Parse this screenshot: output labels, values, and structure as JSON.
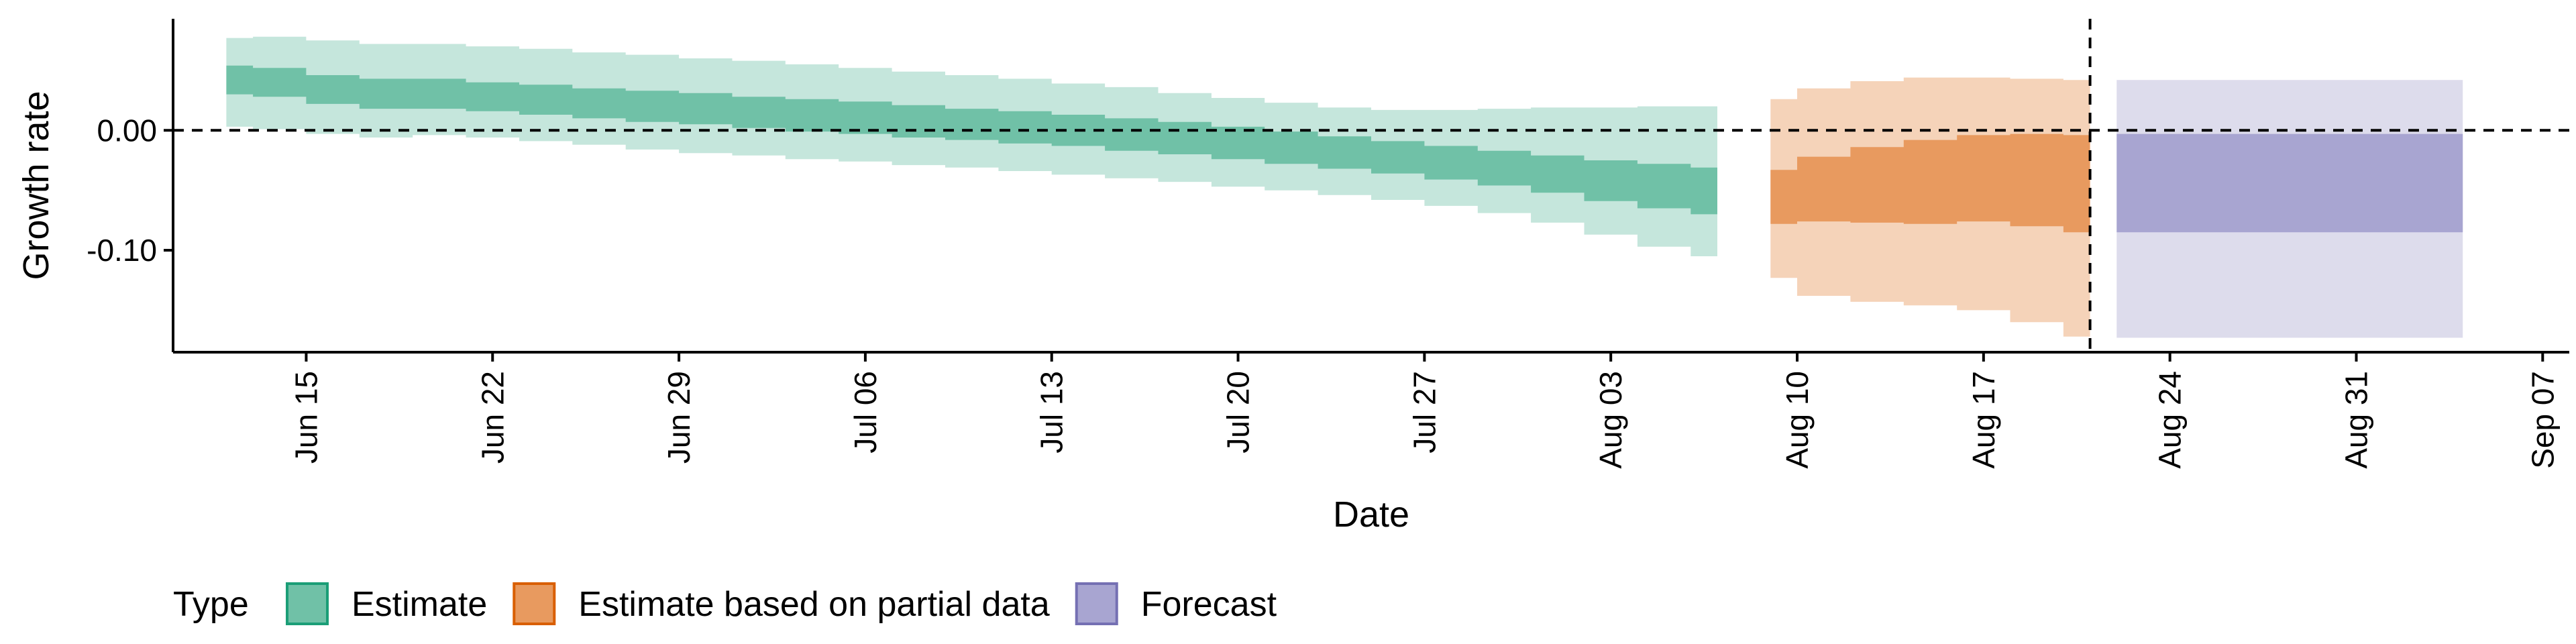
{
  "chart_data": {
    "type": "area",
    "title": "",
    "xlabel": "Date",
    "ylabel": "Growth rate",
    "x_scale": "date",
    "xlim": [
      "2020-06-10",
      "2020-09-08"
    ],
    "ylim": [
      -0.185,
      0.093
    ],
    "x_ticks": [
      {
        "date": "2020-06-15",
        "label": "Jun 15"
      },
      {
        "date": "2020-06-22",
        "label": "Jun 22"
      },
      {
        "date": "2020-06-29",
        "label": "Jun 29"
      },
      {
        "date": "2020-07-06",
        "label": "Jul 06"
      },
      {
        "date": "2020-07-13",
        "label": "Jul 13"
      },
      {
        "date": "2020-07-20",
        "label": "Jul 20"
      },
      {
        "date": "2020-07-27",
        "label": "Jul 27"
      },
      {
        "date": "2020-08-03",
        "label": "Aug 03"
      },
      {
        "date": "2020-08-10",
        "label": "Aug 10"
      },
      {
        "date": "2020-08-17",
        "label": "Aug 17"
      },
      {
        "date": "2020-08-24",
        "label": "Aug 24"
      },
      {
        "date": "2020-08-31",
        "label": "Aug 31"
      },
      {
        "date": "2020-09-07",
        "label": "Sep 07"
      }
    ],
    "y_ticks": [
      {
        "value": 0.0,
        "label": "0.00"
      },
      {
        "value": -0.1,
        "label": "-0.10"
      }
    ],
    "hline": {
      "y": 0.0,
      "style": "dashed"
    },
    "vline": {
      "x": "2020-08-21",
      "style": "dashed"
    },
    "grid": false,
    "legend": {
      "title": "Type",
      "placement": "bottom"
    },
    "series": [
      {
        "name": "Estimate",
        "color": "#1b9e77",
        "fill": "#70c1a7",
        "fill_light": "#c5e6dc",
        "dates": [
          "2020-06-12",
          "2020-06-14",
          "2020-06-16",
          "2020-06-18",
          "2020-06-20",
          "2020-06-22",
          "2020-06-24",
          "2020-06-26",
          "2020-06-28",
          "2020-06-30",
          "2020-07-02",
          "2020-07-04",
          "2020-07-06",
          "2020-07-08",
          "2020-07-10",
          "2020-07-12",
          "2020-07-14",
          "2020-07-16",
          "2020-07-18",
          "2020-07-20",
          "2020-07-22",
          "2020-07-24",
          "2020-07-26",
          "2020-07-28",
          "2020-07-30",
          "2020-08-01",
          "2020-08-03",
          "2020-08-05",
          "2020-08-07"
        ],
        "outer_lower": [
          0.003,
          0.001,
          -0.003,
          -0.006,
          -0.004,
          -0.006,
          -0.009,
          -0.012,
          -0.016,
          -0.019,
          -0.021,
          -0.024,
          -0.026,
          -0.029,
          -0.031,
          -0.034,
          -0.037,
          -0.04,
          -0.043,
          -0.047,
          -0.05,
          -0.054,
          -0.058,
          -0.063,
          -0.069,
          -0.077,
          -0.087,
          -0.097,
          -0.105
        ],
        "inner_lower": [
          0.03,
          0.028,
          0.022,
          0.018,
          0.018,
          0.016,
          0.013,
          0.01,
          0.007,
          0.005,
          0.002,
          -0.001,
          -0.003,
          -0.006,
          -0.008,
          -0.011,
          -0.013,
          -0.017,
          -0.02,
          -0.024,
          -0.028,
          -0.032,
          -0.036,
          -0.041,
          -0.046,
          -0.052,
          -0.059,
          -0.065,
          -0.07
        ],
        "inner_upper": [
          0.054,
          0.052,
          0.046,
          0.043,
          0.043,
          0.04,
          0.038,
          0.035,
          0.033,
          0.031,
          0.028,
          0.026,
          0.024,
          0.021,
          0.018,
          0.016,
          0.013,
          0.01,
          0.007,
          0.003,
          -0.001,
          -0.005,
          -0.009,
          -0.013,
          -0.017,
          -0.021,
          -0.025,
          -0.028,
          -0.031
        ],
        "outer_upper": [
          0.077,
          0.078,
          0.075,
          0.072,
          0.072,
          0.07,
          0.068,
          0.065,
          0.063,
          0.06,
          0.058,
          0.055,
          0.052,
          0.049,
          0.046,
          0.043,
          0.039,
          0.036,
          0.031,
          0.027,
          0.023,
          0.019,
          0.017,
          0.017,
          0.018,
          0.019,
          0.019,
          0.02,
          0.02
        ]
      },
      {
        "name": "Estimate based on partial data",
        "color": "#d95f02",
        "fill": "#e89a5f",
        "fill_light": "#f5d3b9",
        "dates": [
          "2020-08-09",
          "2020-08-11",
          "2020-08-13",
          "2020-08-15",
          "2020-08-17",
          "2020-08-19",
          "2020-08-21"
        ],
        "outer_lower": [
          -0.123,
          -0.138,
          -0.143,
          -0.146,
          -0.15,
          -0.16,
          -0.172
        ],
        "inner_lower": [
          -0.078,
          -0.076,
          -0.077,
          -0.078,
          -0.076,
          -0.08,
          -0.085
        ],
        "inner_upper": [
          -0.033,
          -0.022,
          -0.014,
          -0.008,
          -0.004,
          -0.003,
          -0.004
        ],
        "outer_upper": [
          0.026,
          0.035,
          0.041,
          0.044,
          0.044,
          0.043,
          0.042
        ]
      },
      {
        "name": "Forecast",
        "color": "#7570b3",
        "fill": "#a8a5d1",
        "fill_light": "#dddcec",
        "dates": [
          "2020-08-22",
          "2020-09-04"
        ],
        "outer_lower": [
          -0.173,
          -0.173
        ],
        "inner_lower": [
          -0.085,
          -0.085
        ],
        "inner_upper": [
          -0.003,
          -0.003
        ],
        "outer_upper": [
          0.042,
          0.042
        ]
      }
    ]
  }
}
